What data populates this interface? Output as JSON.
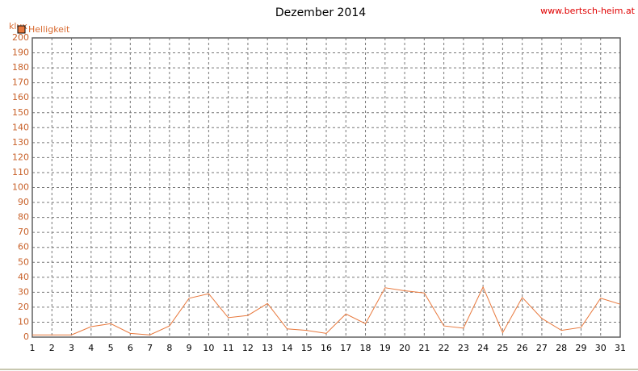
{
  "chart_data": {
    "type": "line",
    "title": "Dezember 2014",
    "source": "www.bertsch-heim.at",
    "ylabel": "klux",
    "x": [
      1,
      2,
      3,
      4,
      5,
      6,
      7,
      8,
      9,
      10,
      11,
      12,
      13,
      14,
      15,
      16,
      17,
      18,
      19,
      20,
      21,
      22,
      23,
      24,
      25,
      26,
      27,
      28,
      29,
      30,
      31
    ],
    "series": [
      {
        "name": "Helligkeit",
        "color": "#e8783c",
        "values": [
          1.5,
          1.5,
          1.5,
          7,
          9,
          2.5,
          1.5,
          7.5,
          26,
          29,
          13,
          14.5,
          22.5,
          5.5,
          4.5,
          2.5,
          15.5,
          9,
          33,
          31,
          29.5,
          7.5,
          6,
          33.5,
          3,
          26.5,
          12.5,
          4.5,
          6.5,
          26,
          22
        ]
      }
    ],
    "xlim": [
      1,
      31
    ],
    "xticks": [
      1,
      2,
      3,
      4,
      5,
      6,
      7,
      8,
      9,
      10,
      11,
      12,
      13,
      14,
      15,
      16,
      17,
      18,
      19,
      20,
      21,
      22,
      23,
      24,
      25,
      26,
      27,
      28,
      29,
      30,
      31
    ],
    "ylim": [
      0,
      200
    ],
    "yticks": [
      0,
      10,
      20,
      30,
      40,
      50,
      60,
      70,
      80,
      90,
      100,
      110,
      120,
      130,
      140,
      150,
      160,
      170,
      180,
      190,
      200
    ],
    "grid": true
  }
}
